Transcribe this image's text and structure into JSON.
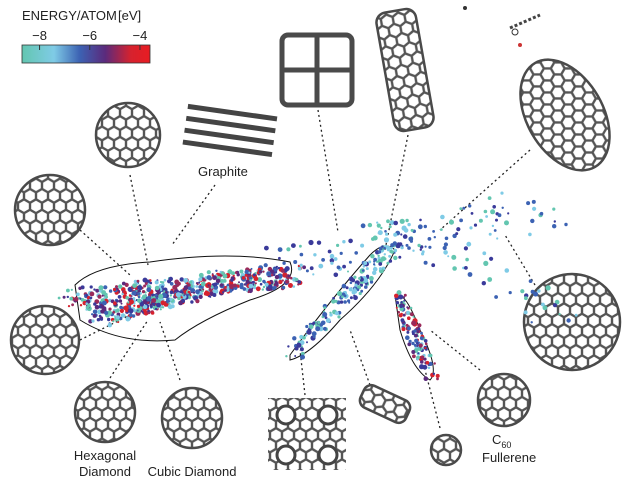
{
  "colorbar": {
    "title": "ENERGY/ATOM",
    "unit": "[eV]",
    "lim": [
      -8.7,
      -3.6
    ],
    "ticks": [
      {
        "value": -8,
        "label": "−8"
      },
      {
        "value": -6,
        "label": "−6"
      },
      {
        "value": -4,
        "label": "−4"
      }
    ]
  },
  "labels": {
    "graphite": "Graphite",
    "hexagonal_diamond": [
      "Hexagonal",
      "Diamond"
    ],
    "cubic_diamond": "Cubic Diamond",
    "fullerene": {
      "base": "C",
      "sub": "60",
      "name": "Fullerene"
    }
  }
}
